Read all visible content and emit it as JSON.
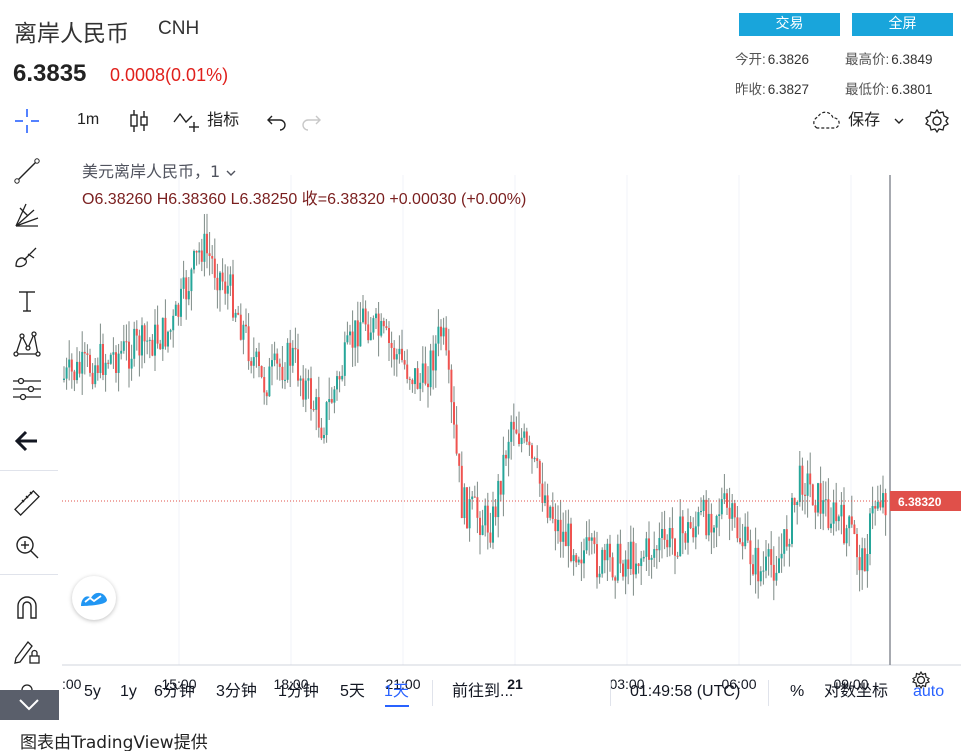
{
  "header": {
    "title": "离岸人民币",
    "symbol": "CNH",
    "price": "6.3835",
    "change": "0.0008(0.01%)",
    "buttons": {
      "trade": "交易",
      "fullscreen": "全屏"
    },
    "stats": {
      "open_label": "今开:",
      "open_value": "6.3826",
      "high_label": "最高价:",
      "high_value": "6.3849",
      "prev_close_label": "昨收:",
      "prev_close_value": "6.3827",
      "low_label": "最低价:",
      "low_value": "6.3801"
    }
  },
  "toolbar": {
    "interval": "1m",
    "indicators": "指标",
    "save": "保存",
    "icons": [
      "crosshair-icon",
      "candles-icon",
      "indicators-icon",
      "undo-icon",
      "redo-icon",
      "cloud-icon",
      "chevron-down-icon",
      "gear-icon"
    ]
  },
  "left_tools": [
    "trend-line-icon",
    "fib-icon",
    "brush-icon",
    "text-icon",
    "pattern-icon",
    "prediction-icon",
    "back-arrow-icon",
    "ruler-icon",
    "zoom-in-icon",
    "magnet-icon",
    "lock-pencil-icon",
    "lock-icon"
  ],
  "legend": {
    "name": "美元离岸人民币，1",
    "ohlc": "O6.38260   H6.38360   L6.38250   收=6.38320   +0.00030 (+0.00%)"
  },
  "chart_data": {
    "type": "candlestick",
    "current_price_label": "6.38320",
    "current_price": 6.3832,
    "x_ticks": [
      ":00",
      "15:00",
      "18:00",
      "21:00",
      "21",
      "03:00",
      "06:00",
      "09:00"
    ],
    "colors": {
      "up": "#26a69a",
      "down": "#ef5350",
      "price_line": "#e0504a",
      "grid": "#f0f3fa"
    }
  },
  "bottom_bar": {
    "ranges": [
      "5y",
      "1y",
      "6分钟",
      "3分钟",
      "1分钟",
      "5天",
      "1天"
    ],
    "active_range": "1天",
    "goto": "前往到...",
    "time": "01:49:58 (UTC)",
    "percent": "%",
    "log": "对数坐标",
    "auto": "auto"
  },
  "footer": "图表由TradingView提供"
}
